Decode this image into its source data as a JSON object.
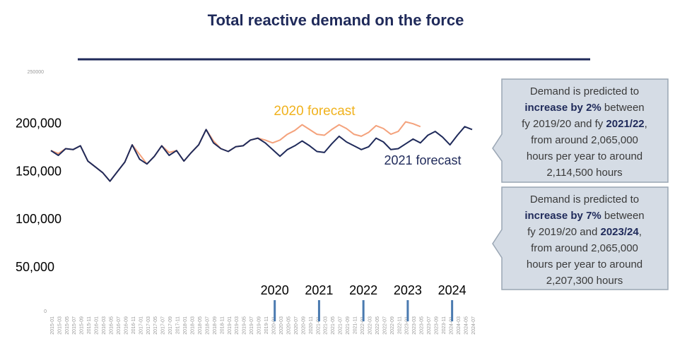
{
  "chart_data": {
    "type": "line",
    "title": "Total reactive demand on the force",
    "categories": [
      "2015-01",
      "2015-03",
      "2015-05",
      "2015-07",
      "2015-09",
      "2015-11",
      "2016-01",
      "2016-03",
      "2016-05",
      "2016-07",
      "2016-09",
      "2016-11",
      "2017-01",
      "2017-03",
      "2017-05",
      "2017-07",
      "2017-09",
      "2017-11",
      "2018-01",
      "2018-03",
      "2018-05",
      "2018-07",
      "2018-09",
      "2018-11",
      "2019-01",
      "2019-03",
      "2019-05",
      "2019-07",
      "2019-09",
      "2019-11",
      "2020-01",
      "2020-03",
      "2020-05",
      "2020-07",
      "2020-09",
      "2020-11",
      "2021-01",
      "2021-03",
      "2021-05",
      "2021-07",
      "2021-09",
      "2021-11",
      "2022-01",
      "2022-03",
      "2022-05",
      "2022-07",
      "2022-09",
      "2022-11",
      "2023-01",
      "2023-03",
      "2023-05",
      "2023-07",
      "2023-09",
      "2023-11",
      "2024-01",
      "2024-03",
      "2024-05",
      "2024-07"
    ],
    "series": [
      {
        "name": "2020 forecast",
        "color": "#f4a27c",
        "label_color": "#f0b21e",
        "values": [
          168000,
          165000,
          170000,
          169000,
          173000,
          157000,
          151000,
          145000,
          136000,
          146000,
          156000,
          174000,
          164000,
          154000,
          162000,
          173000,
          166000,
          168000,
          157000,
          166000,
          174000,
          190000,
          178000,
          170000,
          167000,
          172000,
          173000,
          179000,
          181000,
          179000,
          176000,
          179000,
          185000,
          189000,
          195000,
          190000,
          185000,
          184000,
          190000,
          195000,
          191000,
          185000,
          183000,
          187000,
          194000,
          191000,
          185000,
          188000,
          198000,
          196000,
          193000,
          null,
          null,
          null,
          null,
          null,
          null,
          null
        ]
      },
      {
        "name": "2021 forecast",
        "color": "#1f2a5a",
        "label_color": "#1f2a5a",
        "values": [
          168000,
          163000,
          170000,
          169000,
          173000,
          157000,
          151000,
          145000,
          136000,
          146000,
          156000,
          174000,
          159000,
          154000,
          162000,
          173000,
          163000,
          168000,
          157000,
          166000,
          174000,
          190000,
          176000,
          170000,
          167000,
          172000,
          173000,
          179000,
          181000,
          176000,
          169000,
          162000,
          169000,
          173000,
          178000,
          173000,
          167000,
          166000,
          175000,
          183000,
          177000,
          173000,
          169000,
          172000,
          181000,
          177000,
          169000,
          170000,
          175000,
          180000,
          176000,
          184000,
          188000,
          182000,
          174000,
          184000,
          193000,
          190000
        ]
      }
    ],
    "ylim": [
      0,
      250000
    ],
    "yticks": [
      0,
      {
        "value": 50000,
        "label": "50,000"
      },
      {
        "value": 100000,
        "label": "100,000"
      },
      {
        "value": 150000,
        "label": "150,000"
      },
      {
        "value": 200000,
        "label": "200,000"
      },
      250000
    ],
    "year_markers": [
      {
        "label": "2020",
        "at": "2020-01"
      },
      {
        "label": "2021",
        "at": "2021-01"
      },
      {
        "label": "2022",
        "at": "2022-01"
      },
      {
        "label": "2023",
        "at": "2023-01"
      },
      {
        "label": "2024",
        "at": "2024-01"
      }
    ],
    "callouts": [
      {
        "lines": [
          [
            {
              "text": "Demand is predicted to"
            }
          ],
          [
            {
              "text": "increase by 2%",
              "bold": true
            },
            {
              "text": " between"
            }
          ],
          [
            {
              "text": "fy 2019/20 and fy "
            },
            {
              "text": "2021/22",
              "bold": true
            },
            {
              "text": ","
            }
          ],
          [
            {
              "text": "from around 2,065,000"
            }
          ],
          [
            {
              "text": "hours per year to around"
            }
          ],
          [
            {
              "text": "2,114,500 hours"
            }
          ]
        ]
      },
      {
        "lines": [
          [
            {
              "text": "Demand is predicted to"
            }
          ],
          [
            {
              "text": "increase by 7%",
              "bold": true
            },
            {
              "text": " between"
            }
          ],
          [
            {
              "text": "fy 2019/20 and "
            },
            {
              "text": "2023/24",
              "bold": true
            },
            {
              "text": ","
            }
          ],
          [
            {
              "text": "from around 2,065,000"
            }
          ],
          [
            {
              "text": "hours per year to around"
            }
          ],
          [
            {
              "text": "2,207,300 hours"
            }
          ]
        ]
      }
    ]
  }
}
